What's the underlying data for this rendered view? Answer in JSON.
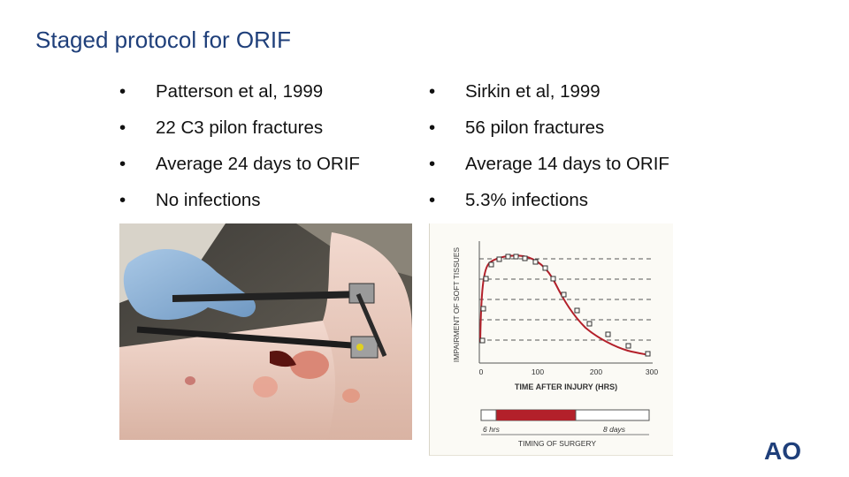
{
  "slide": {
    "title": "Staged protocol for ORIF"
  },
  "left_column": {
    "bullet": "•",
    "items": [
      "Patterson et al, 1999",
      "22 C3 pilon fractures",
      "Average 24 days to ORIF",
      "No infections"
    ]
  },
  "right_column": {
    "bullet": "•",
    "items": [
      "Sirkin et al, 1999",
      "56 pilon fractures",
      "Average 14 days to ORIF",
      "5.3% infections"
    ]
  },
  "figure": {
    "ylabel": "IMPAIRMENT OF SOFT TISSUES",
    "xlabel": "TIME AFTER INJURY (HRS)",
    "xticks": [
      "0",
      "100",
      "200",
      "300"
    ],
    "timing_label": "TIMING OF SURGERY",
    "bar_start_label": "6 hrs",
    "bar_end_label": "8 days",
    "curve_color": "#b3202a"
  },
  "colors": {
    "title": "#1f3f7a",
    "logo": "#1f3f7a"
  },
  "logo": {
    "text": "AO"
  }
}
